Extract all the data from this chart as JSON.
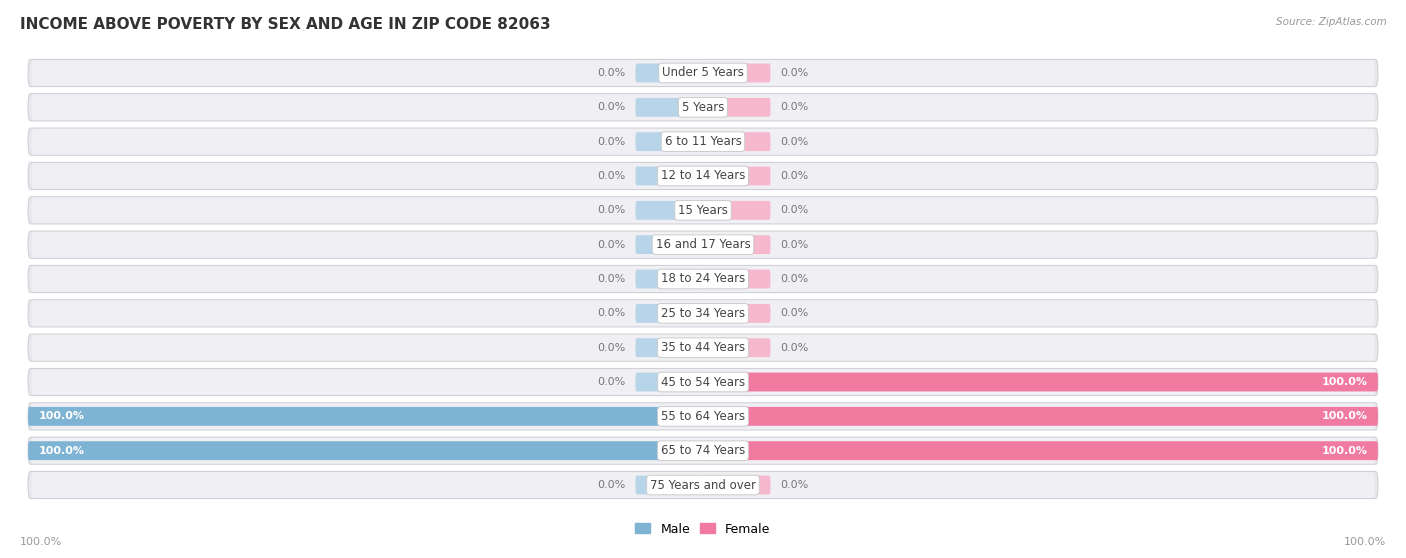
{
  "title": "INCOME ABOVE POVERTY BY SEX AND AGE IN ZIP CODE 82063",
  "source": "Source: ZipAtlas.com",
  "categories": [
    "Under 5 Years",
    "5 Years",
    "6 to 11 Years",
    "12 to 14 Years",
    "15 Years",
    "16 and 17 Years",
    "18 to 24 Years",
    "25 to 34 Years",
    "35 to 44 Years",
    "45 to 54 Years",
    "55 to 64 Years",
    "65 to 74 Years",
    "75 Years and over"
  ],
  "male_values": [
    0.0,
    0.0,
    0.0,
    0.0,
    0.0,
    0.0,
    0.0,
    0.0,
    0.0,
    0.0,
    100.0,
    100.0,
    0.0
  ],
  "female_values": [
    0.0,
    0.0,
    0.0,
    0.0,
    0.0,
    0.0,
    0.0,
    0.0,
    0.0,
    100.0,
    100.0,
    100.0,
    0.0
  ],
  "male_color": "#7fb3d3",
  "female_color": "#f07aa0",
  "male_color_stub": "#b8d4e8",
  "female_color_stub": "#f5b8cc",
  "row_bg_color": "#e8e8ec",
  "row_inner_color": "#f0f0f4",
  "title_fontsize": 11,
  "cat_fontsize": 8.5,
  "value_fontsize": 8,
  "axis_max": 100.0,
  "figure_bg": "#ffffff",
  "bottom_labels": [
    "100.0%",
    "100.0%"
  ]
}
